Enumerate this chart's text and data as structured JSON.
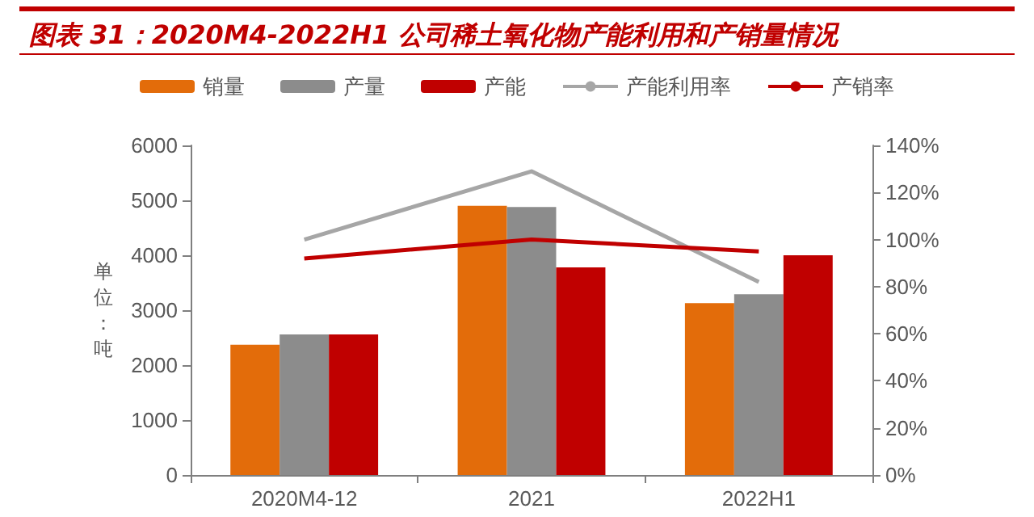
{
  "chart_data": {
    "type": "bar",
    "title": "图表 31：2020M4-2022H1 公司稀土氧化物产能利用和产销量情况",
    "ylabel": "单位：吨",
    "categories": [
      "2020M4-12",
      "2021",
      "2022H1"
    ],
    "series": [
      {
        "name": "销量",
        "color": "#e36c0a",
        "values": [
          2370,
          4900,
          3130
        ]
      },
      {
        "name": "产量",
        "color": "#8c8c8c",
        "values": [
          2560,
          4880,
          3290
        ]
      },
      {
        "name": "产能",
        "color": "#c00000",
        "values": [
          2560,
          3780,
          4000
        ]
      },
      {
        "name": "产能利用率",
        "type": "line",
        "axis": "y2",
        "color": "#a6a6a6",
        "values": [
          100,
          129,
          82
        ]
      },
      {
        "name": "产销率",
        "type": "line",
        "axis": "y2",
        "color": "#c00000",
        "values": [
          92,
          100,
          95
        ]
      }
    ],
    "ylim": [
      0,
      6000
    ],
    "yticks": [
      0,
      1000,
      2000,
      3000,
      4000,
      5000,
      6000
    ],
    "y2lim": [
      0,
      140
    ],
    "y2ticks": [
      {
        "value": 0,
        "label": "0%"
      },
      {
        "value": 20,
        "label": "20%"
      },
      {
        "value": 40,
        "label": "40%"
      },
      {
        "value": 60,
        "label": "60%"
      },
      {
        "value": 80,
        "label": "80%"
      },
      {
        "value": 100,
        "label": "100%"
      },
      {
        "value": 120,
        "label": "120%"
      },
      {
        "value": 140,
        "label": "140%"
      }
    ],
    "grid": false,
    "legend": "top",
    "marker": "none"
  }
}
